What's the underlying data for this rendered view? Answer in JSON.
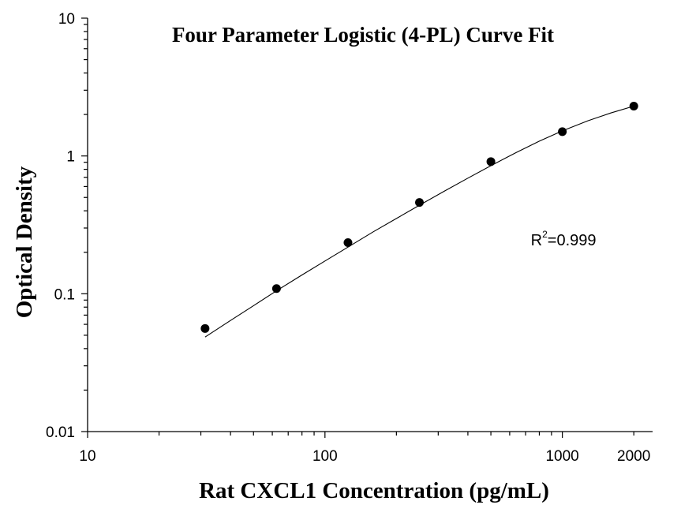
{
  "chart_data": {
    "type": "scatter",
    "title": "Four Parameter Logistic (4-PL) Curve Fit",
    "xlabel": "Rat CXCL1 Concentration (pg/mL)",
    "ylabel": "Optical Density",
    "x_scale": "log",
    "y_scale": "log",
    "xlim": [
      10,
      2400
    ],
    "ylim": [
      0.01,
      10
    ],
    "x_ticks": [
      10,
      100,
      1000,
      2000
    ],
    "x_tick_labels": [
      "10",
      "100",
      "1000",
      "2000"
    ],
    "y_ticks": [
      0.01,
      0.1,
      1,
      10
    ],
    "y_tick_labels": [
      "0.01",
      "0.1",
      "1",
      "10"
    ],
    "grid": false,
    "series": [
      {
        "points": [
          {
            "x": 31.25,
            "y": 0.056
          },
          {
            "x": 62.5,
            "y": 0.109
          },
          {
            "x": 125,
            "y": 0.235
          },
          {
            "x": 250,
            "y": 0.46
          },
          {
            "x": 500,
            "y": 0.91
          },
          {
            "x": 1000,
            "y": 1.5
          },
          {
            "x": 2000,
            "y": 2.3
          }
        ]
      }
    ],
    "fit_curve": {
      "model": "4-PL",
      "x_range": [
        31.25,
        2000
      ],
      "samples": [
        [
          31.25,
          0.0485
        ],
        [
          40,
          0.064
        ],
        [
          50,
          0.082
        ],
        [
          62.5,
          0.105
        ],
        [
          80,
          0.137
        ],
        [
          100,
          0.173
        ],
        [
          125,
          0.218
        ],
        [
          160,
          0.282
        ],
        [
          200,
          0.352
        ],
        [
          250,
          0.439
        ],
        [
          320,
          0.558
        ],
        [
          400,
          0.69
        ],
        [
          500,
          0.85
        ],
        [
          640,
          1.06
        ],
        [
          800,
          1.28
        ],
        [
          1000,
          1.52
        ],
        [
          1280,
          1.8
        ],
        [
          1600,
          2.05
        ],
        [
          2000,
          2.3
        ]
      ]
    },
    "annotation": {
      "base": "R",
      "superscript": "2",
      "value_text": "=0.999",
      "anchor_data": {
        "x": 1000,
        "y": 0.25
      }
    }
  }
}
